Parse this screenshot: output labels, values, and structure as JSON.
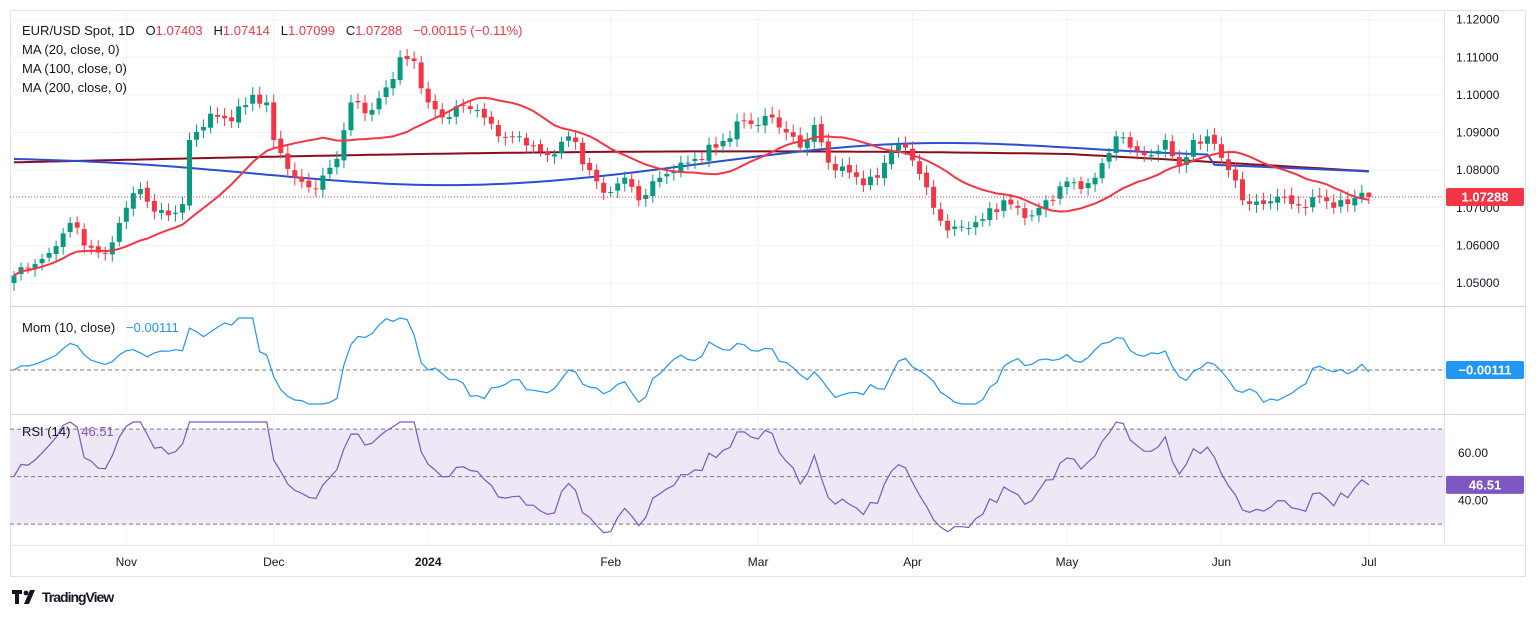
{
  "header": {
    "symbol": "EUR/USD Spot, 1D",
    "open_label": "O",
    "open": "1.07403",
    "high_label": "H",
    "high": "1.07414",
    "low_label": "L",
    "low": "1.07099",
    "close_label": "C",
    "close": "1.07288",
    "change": "−0.00115 (−0.11%)"
  },
  "indicators": {
    "ma20": "MA (20, close, 0)",
    "ma100": "MA (100, close, 0)",
    "ma200": "MA (200, close, 0)",
    "mom_label": "Mom (10, close)",
    "mom_value": "−0.00111",
    "rsi_label": "RSI (14)",
    "rsi_value": "46.51"
  },
  "price_badge": "1.07288",
  "mom_badge": "−0.00111",
  "rsi_badge": "46.51",
  "brand": "TradingView",
  "colors": {
    "up": "#089981",
    "down": "#f23645",
    "ma20": "#f23645",
    "ma100": "#2b4fcf",
    "ma200": "#880e1f",
    "mom": "#2196f3",
    "rsi": "#7e57c2",
    "rsi_band": "#ede7f6"
  },
  "chart_data": {
    "type": "candlestick",
    "title": "EUR/USD Spot, 1D",
    "price_axis": {
      "range": [
        1.0455,
        1.1215
      ],
      "ticks": [
        "1.12000",
        "1.11000",
        "1.10000",
        "1.09000",
        "1.08000",
        "1.07000",
        "1.06000",
        "1.05000"
      ],
      "tick_values": [
        1.12,
        1.11,
        1.1,
        1.09,
        1.08,
        1.07,
        1.06,
        1.05
      ],
      "last_price": 1.07288
    },
    "time_axis": {
      "labels": [
        "Nov",
        "Dec",
        "2024",
        "Feb",
        "Mar",
        "Apr",
        "May",
        "Jun",
        "Jul"
      ],
      "bar_index": [
        16,
        37,
        59,
        85,
        106,
        128,
        150,
        172,
        193
      ],
      "bold": [
        false,
        false,
        true,
        false,
        false,
        false,
        false,
        false,
        false
      ],
      "bars_total": 196
    },
    "anchors": [
      [
        0,
        1.052
      ],
      [
        5,
        1.058
      ],
      [
        8,
        1.066
      ],
      [
        10,
        1.06
      ],
      [
        13,
        1.058
      ],
      [
        16,
        1.07
      ],
      [
        18,
        1.075
      ],
      [
        20,
        1.069
      ],
      [
        22,
        1.068
      ],
      [
        24,
        1.071
      ],
      [
        25,
        1.088
      ],
      [
        28,
        1.095
      ],
      [
        31,
        1.093
      ],
      [
        34,
        1.1
      ],
      [
        36,
        1.098
      ],
      [
        37,
        1.088
      ],
      [
        40,
        1.078
      ],
      [
        43,
        1.075
      ],
      [
        46,
        1.083
      ],
      [
        48,
        1.098
      ],
      [
        51,
        1.096
      ],
      [
        53,
        1.102
      ],
      [
        55,
        1.11
      ],
      [
        57,
        1.109
      ],
      [
        59,
        1.098
      ],
      [
        61,
        1.094
      ],
      [
        63,
        1.097
      ],
      [
        66,
        1.096
      ],
      [
        69,
        1.089
      ],
      [
        72,
        1.089
      ],
      [
        76,
        1.084
      ],
      [
        79,
        1.089
      ],
      [
        82,
        1.08
      ],
      [
        84,
        1.074
      ],
      [
        87,
        1.078
      ],
      [
        89,
        1.072
      ],
      [
        92,
        1.078
      ],
      [
        95,
        1.082
      ],
      [
        97,
        1.083
      ],
      [
        100,
        1.086
      ],
      [
        104,
        1.093
      ],
      [
        106,
        1.092
      ],
      [
        108,
        1.094
      ],
      [
        110,
        1.09
      ],
      [
        112,
        1.086
      ],
      [
        114,
        1.092
      ],
      [
        116,
        1.082
      ],
      [
        118,
        1.081
      ],
      [
        121,
        1.076
      ],
      [
        123,
        1.078
      ],
      [
        125,
        1.085
      ],
      [
        127,
        1.086
      ],
      [
        129,
        1.079
      ],
      [
        131,
        1.07
      ],
      [
        133,
        1.064
      ],
      [
        135,
        1.065
      ],
      [
        138,
        1.067
      ],
      [
        141,
        1.072
      ],
      [
        143,
        1.07
      ],
      [
        145,
        1.068
      ],
      [
        147,
        1.072
      ],
      [
        150,
        1.077
      ],
      [
        152,
        1.075
      ],
      [
        154,
        1.078
      ],
      [
        157,
        1.089
      ],
      [
        159,
        1.086
      ],
      [
        162,
        1.084
      ],
      [
        164,
        1.088
      ],
      [
        166,
        1.081
      ],
      [
        168,
        1.088
      ],
      [
        171,
        1.087
      ],
      [
        173,
        1.08
      ],
      [
        175,
        1.072
      ],
      [
        178,
        1.071
      ],
      [
        180,
        1.073
      ],
      [
        182,
        1.071
      ],
      [
        184,
        1.07
      ],
      [
        186,
        1.073
      ],
      [
        188,
        1.07
      ],
      [
        190,
        1.071
      ],
      [
        192,
        1.074
      ],
      [
        193,
        1.0729
      ]
    ],
    "last_candle": {
      "open": 1.07403,
      "high": 1.07414,
      "low": 1.07099,
      "close": 1.07288
    },
    "series": [
      {
        "name": "MA (20, close, 0)",
        "period": 20
      },
      {
        "name": "MA (100, close, 0)",
        "period": 100
      },
      {
        "name": "MA (200, close, 0)",
        "period": 200
      }
    ],
    "momentum": {
      "name": "Mom (10, close)",
      "last": -0.00111,
      "zero_line": 0
    },
    "rsi": {
      "name": "RSI (14)",
      "last": 46.51,
      "ticks": [
        "60.00",
        "40.00"
      ],
      "tick_values": [
        60,
        40
      ],
      "bands": [
        30,
        50,
        70
      ],
      "range": [
        25,
        73
      ]
    }
  }
}
